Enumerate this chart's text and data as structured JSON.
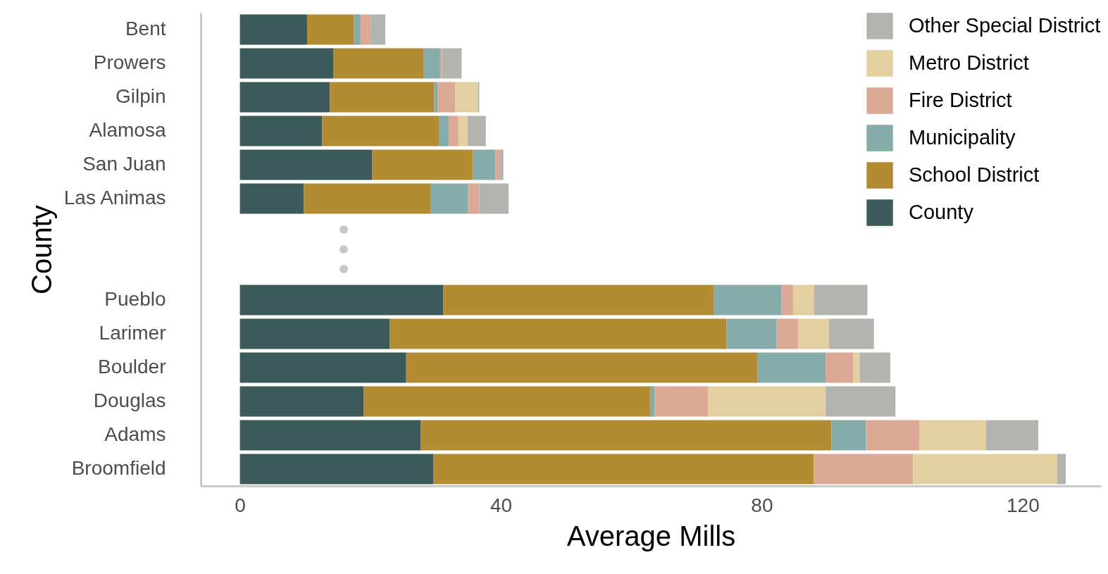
{
  "chart_data": {
    "type": "bar",
    "orientation": "horizontal",
    "stacked": true,
    "xlabel": "Average Mills",
    "ylabel": "County",
    "categories": [
      "Bent",
      "Prowers",
      "Gilpin",
      "Alamosa",
      "San Juan",
      "Las Animas",
      null,
      null,
      "Pueblo",
      "Larimer",
      "Boulder",
      "Douglas",
      "Adams",
      "Broomfield"
    ],
    "series": [
      {
        "name": "County",
        "color": "#3d5a5a",
        "values": [
          10.3,
          14.3,
          13.8,
          12.6,
          20.3,
          9.8,
          null,
          null,
          31.2,
          23.0,
          25.5,
          19.0,
          27.7,
          29.7
        ]
      },
      {
        "name": "School District",
        "color": "#b38b33",
        "values": [
          7.2,
          13.9,
          16.0,
          17.9,
          15.4,
          19.4,
          null,
          null,
          41.5,
          51.6,
          53.8,
          43.9,
          63.0,
          58.3
        ]
      },
      {
        "name": "Municipality",
        "color": "#85abaa",
        "values": [
          1.0,
          2.5,
          0.5,
          1.5,
          3.5,
          5.8,
          null,
          null,
          10.3,
          7.7,
          10.5,
          0.7,
          5.3,
          0
        ]
      },
      {
        "name": "Fire District",
        "color": "#dba995",
        "values": [
          1.5,
          0.3,
          2.7,
          1.5,
          0.7,
          1.7,
          null,
          null,
          1.8,
          3.3,
          4.2,
          8.2,
          8.2,
          15.2
        ]
      },
      {
        "name": "Metro District",
        "color": "#e3cf9f",
        "values": [
          0,
          0,
          3.5,
          1.4,
          0,
          0,
          null,
          null,
          3.2,
          4.7,
          1.0,
          18.0,
          10.2,
          22.1
        ]
      },
      {
        "name": "Other Special District",
        "color": "#b3b3af",
        "values": [
          2.3,
          3.0,
          0.2,
          2.8,
          0.5,
          4.5,
          null,
          null,
          8.2,
          6.9,
          4.7,
          10.7,
          8.0,
          1.3
        ]
      }
    ],
    "xlim": [
      -6,
      132
    ],
    "xticks": [
      0,
      40,
      80,
      120
    ],
    "grid": false,
    "legend": "top right"
  }
}
